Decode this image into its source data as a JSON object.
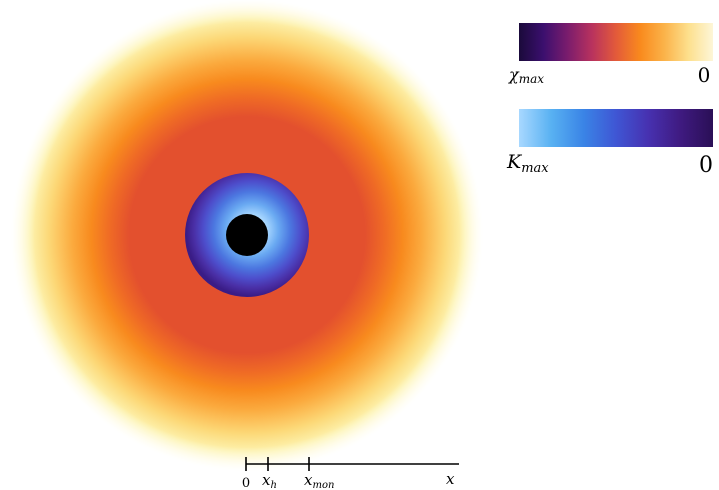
{
  "colorbars": {
    "chi": {
      "symbol": "χ",
      "subscript": "max",
      "end_value": "0",
      "colors": [
        "#1a0a3a",
        "#3b0f6e",
        "#7a1c6d",
        "#b8325e",
        "#e35a3a",
        "#f98a1d",
        "#fbb34a",
        "#fde08e",
        "#fdf6d8"
      ]
    },
    "k": {
      "symbol": "K",
      "subscript": "max",
      "end_value": "0",
      "colors": [
        "#a8d8ff",
        "#58b1f2",
        "#3a84e6",
        "#3f56d4",
        "#4731b0",
        "#3f1a80",
        "#2a0f56"
      ]
    }
  },
  "axis": {
    "ticks": [
      {
        "symbol": "0",
        "subscript": ""
      },
      {
        "symbol": "x",
        "subscript": "h"
      },
      {
        "symbol": "x",
        "subscript": "mon"
      }
    ],
    "end_label": "x"
  },
  "map": {
    "chi_ramp": [
      "#fffde6",
      "#fdf3b0",
      "#fcd877",
      "#fbaa3e",
      "#f88a1e",
      "#ef6a25",
      "#e3502e"
    ],
    "k_ramp": [
      "#aad8ff",
      "#6aaaf2",
      "#4c77e0",
      "#4d4dcb",
      "#4a2fa6",
      "#3a1c86"
    ],
    "core_color": "#000000"
  }
}
